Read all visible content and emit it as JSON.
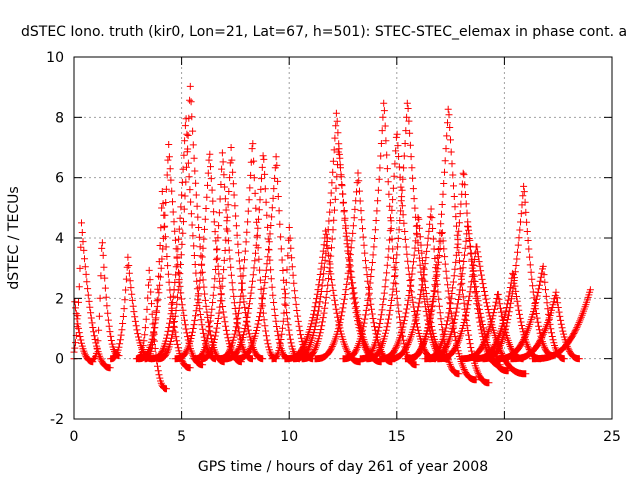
{
  "chart_data": {
    "type": "scatter",
    "title": "dSTEC Iono. truth (kir0, Lon=21, Lat=67, h=501): STEC-STEC_elemax in phase cont. a",
    "xlabel": "GPS time / hours of day 261 of year 2008",
    "ylabel": "dSTEC  / TECUs",
    "xlim": [
      0,
      25
    ],
    "ylim": [
      -2,
      10
    ],
    "xticks": [
      0,
      5,
      10,
      15,
      20,
      25
    ],
    "yticks": [
      -2,
      0,
      2,
      4,
      6,
      8,
      10
    ],
    "grid": true,
    "legend": "none",
    "marker": "+",
    "color": "#ff0000",
    "arcs": [
      {
        "start": 0.0,
        "peak_x": 0.0,
        "peak_y": 2.1,
        "end": 0.9,
        "end_y": -0.1
      },
      {
        "start": -0.2,
        "peak_x": 0.35,
        "peak_y": 4.5,
        "end": 1.7,
        "end_y": -0.3
      },
      {
        "start": 0.9,
        "peak_x": 1.3,
        "peak_y": 4.1,
        "end": 2.1,
        "end_y": 0.1
      },
      {
        "start": 1.7,
        "peak_x": 2.5,
        "peak_y": 3.4,
        "end": 3.6,
        "end_y": 0.0
      },
      {
        "start": 2.9,
        "peak_x": 3.5,
        "peak_y": 3.0,
        "end": 4.3,
        "end_y": -1.0
      },
      {
        "start": 3.3,
        "peak_x": 4.1,
        "peak_y": 5.6,
        "end": 5.4,
        "end_y": -0.3
      },
      {
        "start": 3.0,
        "peak_x": 4.4,
        "peak_y": 7.1,
        "end": 6.0,
        "end_y": -0.2
      },
      {
        "start": 3.6,
        "peak_x": 5.2,
        "peak_y": 8.1,
        "end": 6.6,
        "end_y": 0.0
      },
      {
        "start": 3.9,
        "peak_x": 5.4,
        "peak_y": 9.1,
        "end": 7.0,
        "end_y": -0.1
      },
      {
        "start": 4.7,
        "peak_x": 6.3,
        "peak_y": 6.9,
        "end": 7.8,
        "end_y": -0.1
      },
      {
        "start": 5.6,
        "peak_x": 6.9,
        "peak_y": 6.9,
        "end": 8.3,
        "end_y": 0.0
      },
      {
        "start": 5.9,
        "peak_x": 7.3,
        "peak_y": 7.0,
        "end": 8.8,
        "end_y": 0.0
      },
      {
        "start": 6.7,
        "peak_x": 8.3,
        "peak_y": 7.3,
        "end": 9.4,
        "end_y": 0.0
      },
      {
        "start": 7.0,
        "peak_x": 8.8,
        "peak_y": 6.9,
        "end": 10.0,
        "end_y": 0.0
      },
      {
        "start": 7.5,
        "peak_x": 9.4,
        "peak_y": 6.8,
        "end": 10.5,
        "end_y": 0.0
      },
      {
        "start": 9.2,
        "peak_x": 10.0,
        "peak_y": 4.4,
        "end": 11.1,
        "end_y": 0.0
      },
      {
        "start": 9.8,
        "peak_x": 11.7,
        "peak_y": 4.3,
        "end": 13.3,
        "end_y": -0.1
      },
      {
        "start": 10.2,
        "peak_x": 12.2,
        "peak_y": 8.2,
        "end": 14.1,
        "end_y": 0.0
      },
      {
        "start": 10.6,
        "peak_x": 12.3,
        "peak_y": 7.1,
        "end": 14.3,
        "end_y": -0.1
      },
      {
        "start": 11.2,
        "peak_x": 13.2,
        "peak_y": 6.2,
        "end": 14.8,
        "end_y": -0.1
      },
      {
        "start": 12.5,
        "peak_x": 14.4,
        "peak_y": 8.6,
        "end": 15.9,
        "end_y": -0.2
      },
      {
        "start": 13.3,
        "peak_x": 15.0,
        "peak_y": 7.6,
        "end": 16.8,
        "end_y": 0.0
      },
      {
        "start": 13.6,
        "peak_x": 15.5,
        "peak_y": 8.6,
        "end": 17.3,
        "end_y": 0.0
      },
      {
        "start": 14.2,
        "peak_x": 16.0,
        "peak_y": 4.8,
        "end": 17.4,
        "end_y": 0.0
      },
      {
        "start": 14.6,
        "peak_x": 16.6,
        "peak_y": 5.0,
        "end": 17.9,
        "end_y": -0.5
      },
      {
        "start": 15.4,
        "peak_x": 17.1,
        "peak_y": 4.3,
        "end": 18.7,
        "end_y": -0.7
      },
      {
        "start": 15.5,
        "peak_x": 17.4,
        "peak_y": 8.4,
        "end": 19.3,
        "end_y": -0.8
      },
      {
        "start": 16.3,
        "peak_x": 18.1,
        "peak_y": 6.3,
        "end": 19.8,
        "end_y": -0.2
      },
      {
        "start": 16.5,
        "peak_x": 18.3,
        "peak_y": 4.5,
        "end": 20.2,
        "end_y": -0.4
      },
      {
        "start": 16.9,
        "peak_x": 18.7,
        "peak_y": 3.8,
        "end": 21.0,
        "end_y": -0.5
      },
      {
        "start": 18.0,
        "peak_x": 19.7,
        "peak_y": 2.2,
        "end": 20.9,
        "end_y": 0.0
      },
      {
        "start": 18.6,
        "peak_x": 20.4,
        "peak_y": 2.9,
        "end": 21.7,
        "end_y": 0.0
      },
      {
        "start": 19.0,
        "peak_x": 20.9,
        "peak_y": 5.8,
        "end": 22.3,
        "end_y": 0.1
      },
      {
        "start": 19.6,
        "peak_x": 21.8,
        "peak_y": 3.1,
        "end": 22.8,
        "end_y": 0.0
      },
      {
        "start": 20.3,
        "peak_x": 22.4,
        "peak_y": 2.2,
        "end": 23.5,
        "end_y": 0.0
      },
      {
        "start": 21.3,
        "peak_x": 24.0,
        "peak_y": 2.3,
        "end": 24.0,
        "end_y": 2.3
      }
    ]
  }
}
